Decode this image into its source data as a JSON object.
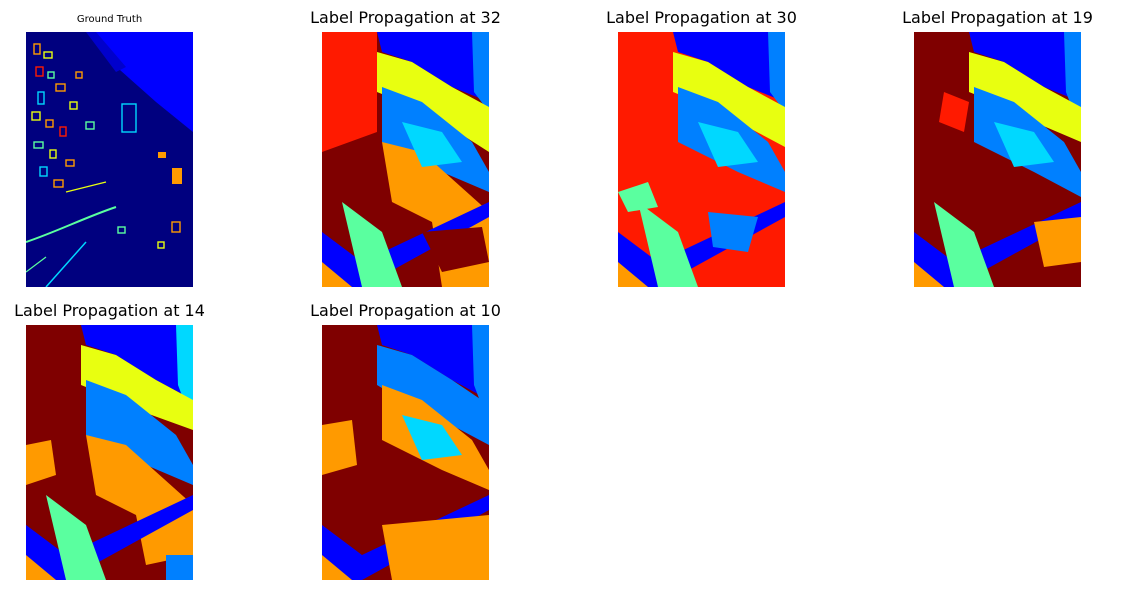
{
  "figure": {
    "panels": [
      {
        "title": "Ground Truth",
        "kind": "ground-truth"
      },
      {
        "title": "Label Propagation at 32",
        "kind": "prediction",
        "palette": "red-dominant"
      },
      {
        "title": "Label Propagation at 30",
        "kind": "prediction",
        "palette": "red-bright"
      },
      {
        "title": "Label Propagation at 19",
        "kind": "prediction",
        "palette": "maroon-dominant"
      },
      {
        "title": "Label Propagation at 14",
        "kind": "prediction",
        "palette": "maroon-orange"
      },
      {
        "title": "Label Propagation at 10",
        "kind": "prediction",
        "palette": "maroon-orange-blue"
      }
    ],
    "colors": {
      "background_dark": "#00007f",
      "river": "#0000ff",
      "maroon": "#7f0000",
      "red": "#ff1a00",
      "orange": "#ff9a00",
      "yellow": "#e8ff10",
      "green": "#5aff9f",
      "cyan": "#00d8ff",
      "azure": "#0080ff"
    }
  }
}
